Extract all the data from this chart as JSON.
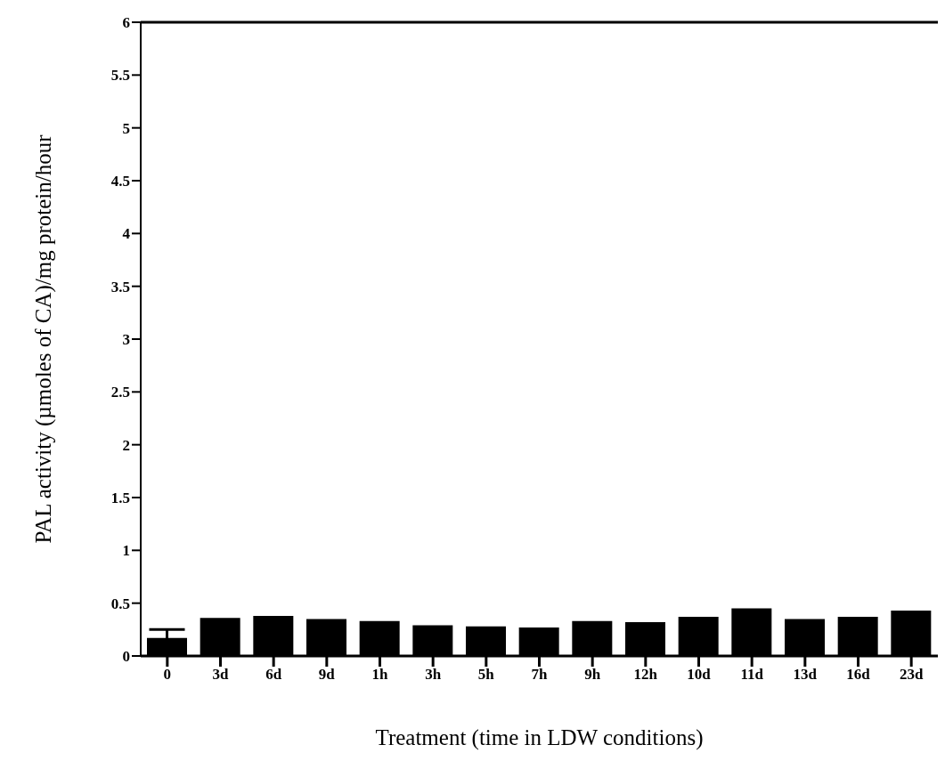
{
  "chart_data": {
    "type": "bar",
    "xlabel": "Treatment (time in LDW conditions)",
    "ylabel": "PAL activity (µmoles of CA)/mg protein/hour",
    "categories": [
      "0",
      "3d",
      "6d",
      "9d",
      "1h",
      "3h",
      "5h",
      "7h",
      "9h",
      "12h",
      "10d",
      "11d",
      "13d",
      "16d",
      "23d"
    ],
    "values": [
      0.17,
      0.36,
      0.38,
      0.35,
      0.33,
      0.29,
      0.28,
      0.27,
      0.33,
      0.32,
      0.37,
      0.45,
      0.35,
      0.37,
      0.43
    ],
    "errors": [
      0.08,
      null,
      null,
      null,
      null,
      null,
      null,
      null,
      null,
      null,
      null,
      null,
      null,
      null,
      null
    ],
    "color": "#000000",
    "ylim": [
      0,
      6
    ],
    "yticks": [
      0,
      0.5,
      1,
      1.5,
      2,
      2.5,
      3,
      3.5,
      4,
      4.5,
      5,
      5.5,
      6
    ],
    "grid": false,
    "legend": false
  }
}
